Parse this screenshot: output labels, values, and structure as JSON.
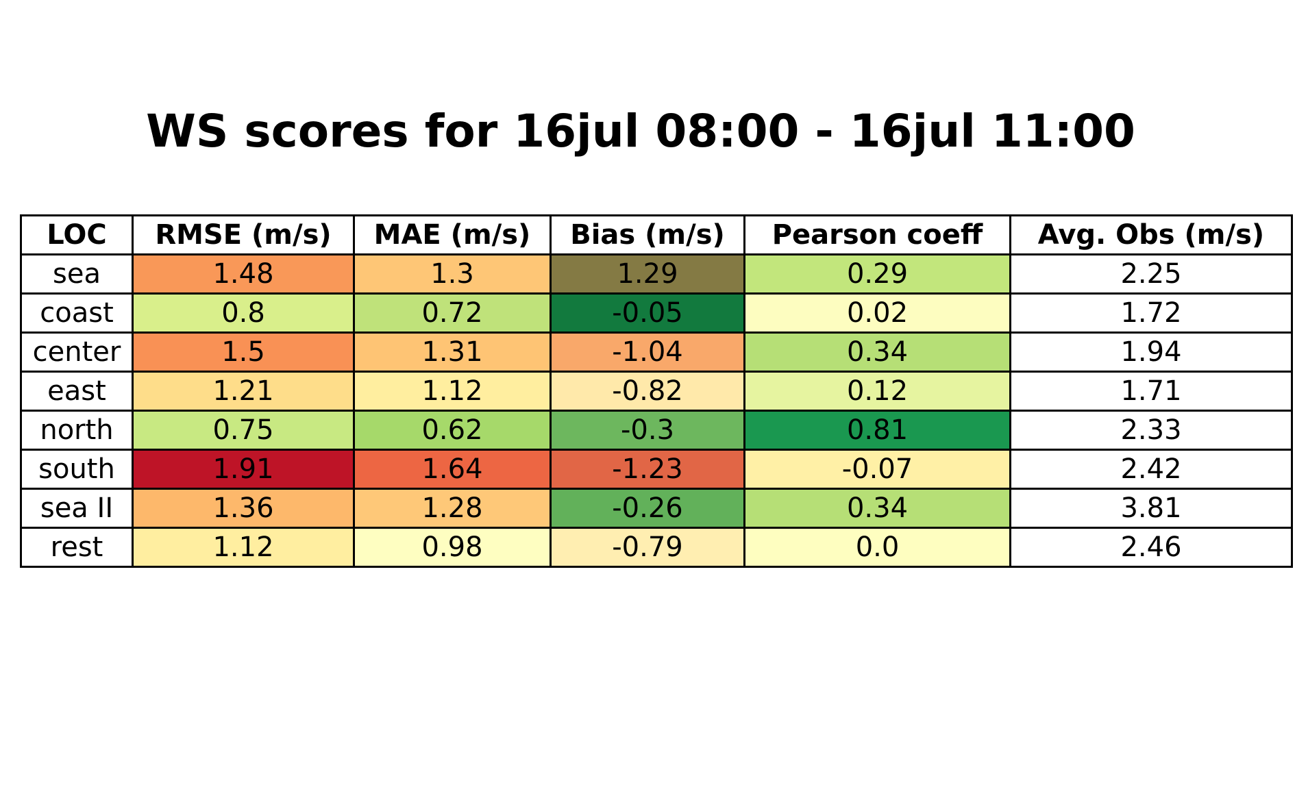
{
  "chart_data": {
    "type": "table",
    "title": "WS scores for 16jul 08:00 - 16jul 11:00",
    "columns": [
      "LOC",
      "RMSE (m/s)",
      "MAE (m/s)",
      "Bias (m/s)",
      "Pearson coeff",
      "Avg. Obs (m/s)"
    ],
    "rows": [
      {
        "loc": "sea",
        "values": [
          "1.48",
          "1.3",
          "1.29",
          "0.29",
          "2.25"
        ],
        "colors": [
          "#f99858",
          "#fec676",
          "#847a44",
          "#c2e67c",
          "#ffffff"
        ]
      },
      {
        "loc": "coast",
        "values": [
          "0.8",
          "0.72",
          "-0.05",
          "0.02",
          "1.72"
        ],
        "colors": [
          "#d9ef8b",
          "#bfe27a",
          "#127a3e",
          "#fdfdc0",
          "#ffffff"
        ]
      },
      {
        "loc": "center",
        "values": [
          "1.5",
          "1.31",
          "-1.04",
          "0.34",
          "1.94"
        ],
        "colors": [
          "#f99155",
          "#fec474",
          "#f9a86a",
          "#b6df76",
          "#ffffff"
        ]
      },
      {
        "loc": "east",
        "values": [
          "1.21",
          "1.12",
          "-0.82",
          "0.12",
          "1.71"
        ],
        "colors": [
          "#fedd8a",
          "#ffee9f",
          "#ffe9aa",
          "#e6f4a0",
          "#ffffff"
        ]
      },
      {
        "loc": "north",
        "values": [
          "0.75",
          "0.62",
          "-0.3",
          "0.81",
          "2.33"
        ],
        "colors": [
          "#c8e982",
          "#a6d96a",
          "#6db75e",
          "#1a9850",
          "#ffffff"
        ]
      },
      {
        "loc": "south",
        "values": [
          "1.91",
          "1.64",
          "-1.23",
          "-0.07",
          "2.42"
        ],
        "colors": [
          "#be1427",
          "#ed6643",
          "#e16646",
          "#fff0a6",
          "#ffffff"
        ]
      },
      {
        "loc": "sea II",
        "values": [
          "1.36",
          "1.28",
          "-0.26",
          "0.34",
          "3.81"
        ],
        "colors": [
          "#fdb86b",
          "#fec878",
          "#62b15a",
          "#b6df76",
          "#ffffff"
        ]
      },
      {
        "loc": "rest",
        "values": [
          "1.12",
          "0.98",
          "-0.79",
          "0.0",
          "2.46"
        ],
        "colors": [
          "#ffeea0",
          "#fefec1",
          "#ffeeb1",
          "#fefec0",
          "#ffffff"
        ]
      }
    ]
  }
}
